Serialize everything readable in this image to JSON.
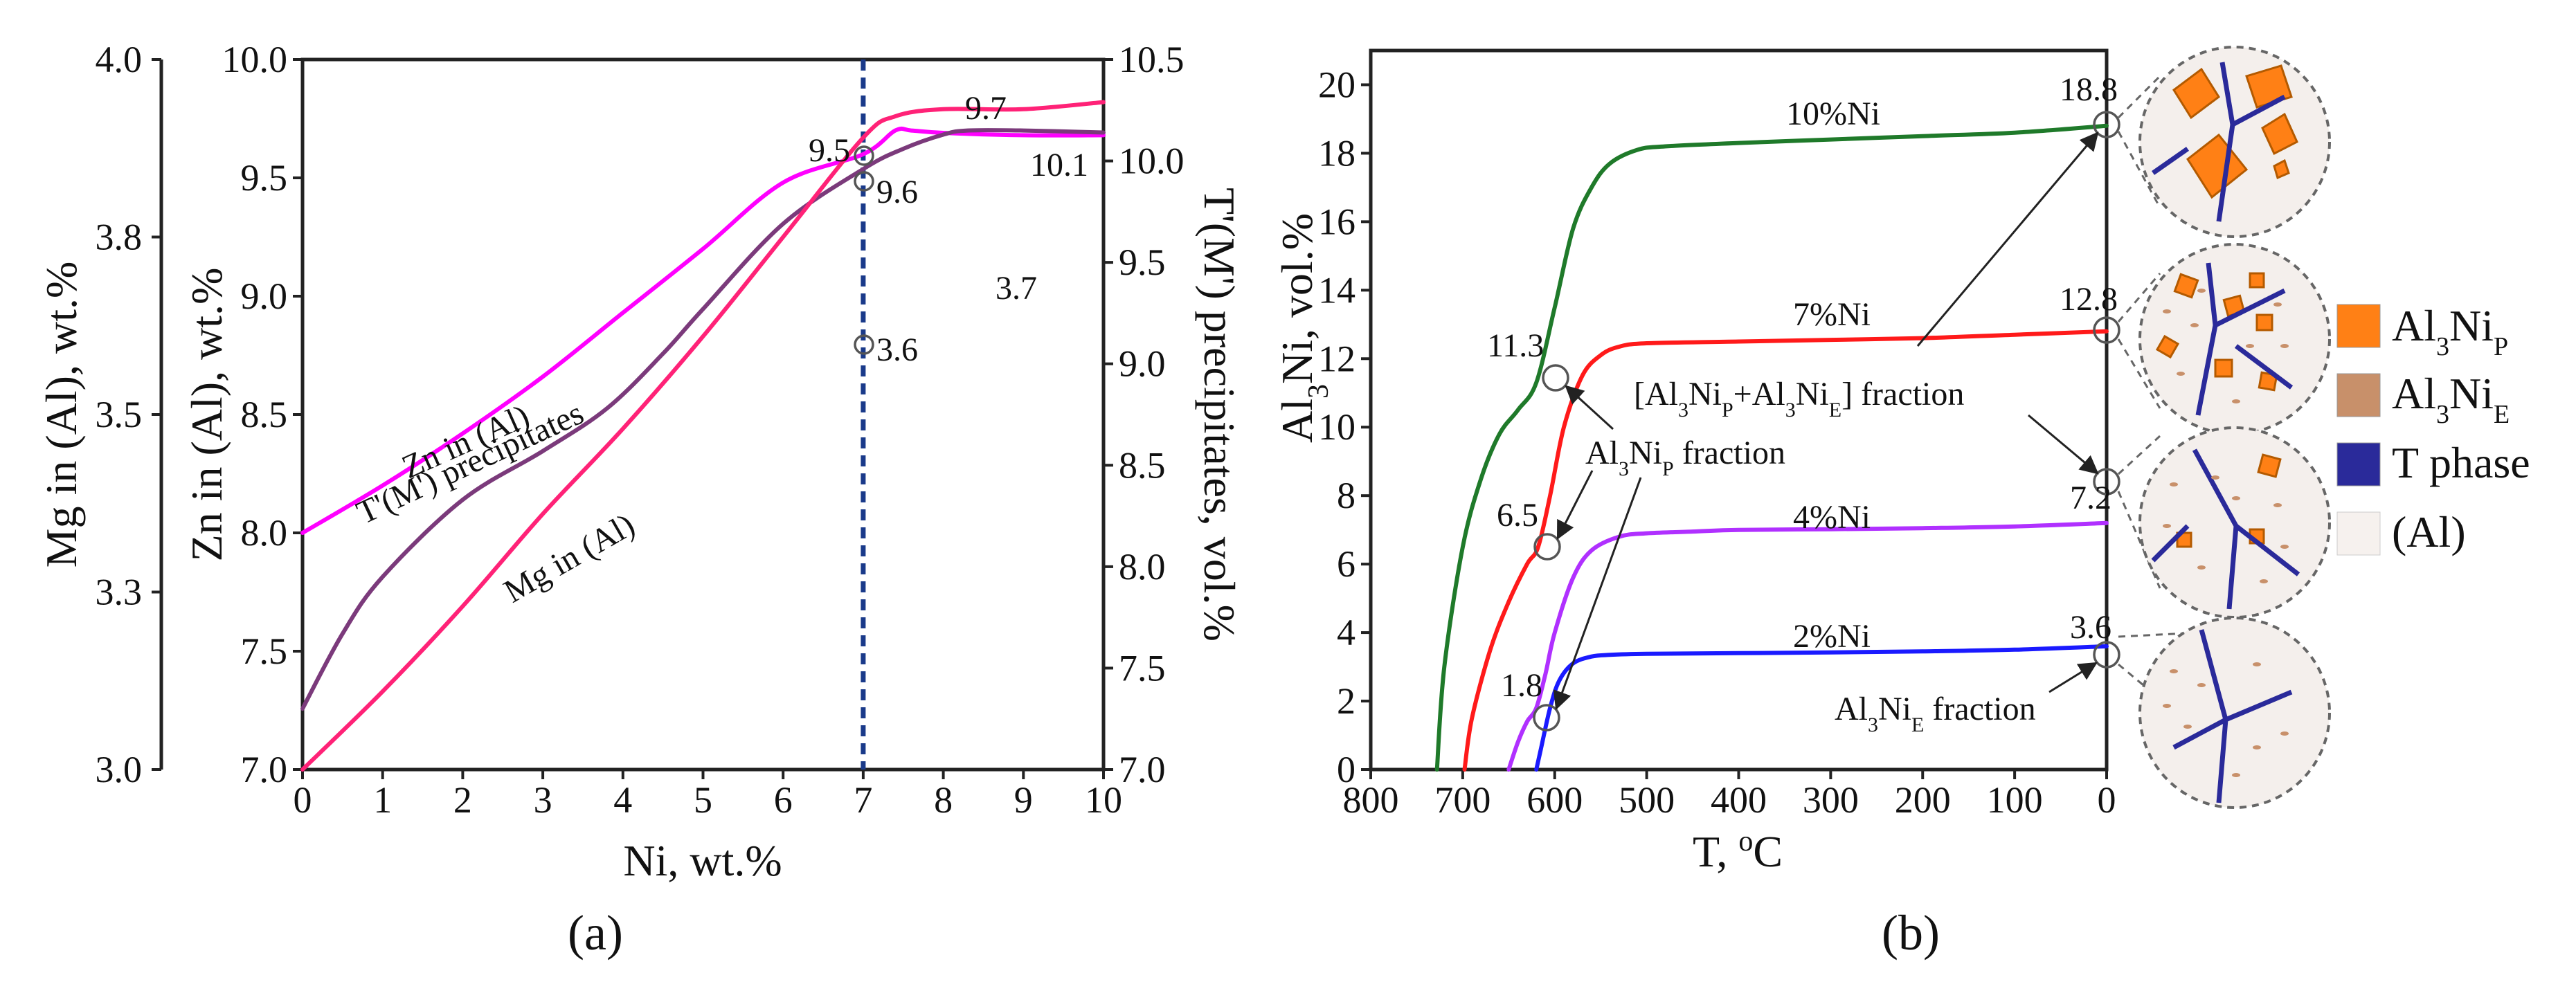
{
  "chart_data": [
    {
      "id": "a",
      "type": "line",
      "panel_label": "(a)",
      "xlabel": "Ni, wt.%",
      "xlim": [
        0,
        10
      ],
      "x_ticks": [
        "0",
        "1",
        "2",
        "3",
        "4",
        "5",
        "6",
        "7",
        "8",
        "9",
        "10"
      ],
      "y_axes": [
        {
          "id": "mg",
          "label": "Mg in (Al), wt.%",
          "ylim": [
            3.0,
            4.0
          ],
          "ticks": [
            "3.0",
            "3.3",
            "3.5",
            "3.8",
            "4.0"
          ],
          "tick_values": [
            3.0,
            3.25,
            3.5,
            3.75,
            4.0
          ]
        },
        {
          "id": "zn",
          "label": "Zn in (Al), wt.%",
          "ylim": [
            7.0,
            10.0
          ],
          "ticks": [
            "7.0",
            "7.5",
            "8.0",
            "8.5",
            "9.0",
            "9.5",
            "10.0"
          ]
        },
        {
          "id": "t",
          "label": "T'(M') precipitates, vol.%",
          "ylim": [
            7.0,
            10.5
          ],
          "ticks": [
            "7.0",
            "7.5",
            "8.0",
            "8.5",
            "9.0",
            "9.5",
            "10.0",
            "10.5"
          ]
        }
      ],
      "series": [
        {
          "name": "Zn in (Al)",
          "label": "Zn in (Al)",
          "color": "#ff00ff",
          "axis": "zn",
          "x": [
            0,
            1,
            2,
            3,
            4,
            5,
            6,
            7,
            7.4,
            7.6,
            8,
            9,
            10
          ],
          "y": [
            8.0,
            8.2,
            8.42,
            8.66,
            8.93,
            9.2,
            9.48,
            9.6,
            9.7,
            9.7,
            9.69,
            9.68,
            9.68
          ]
        },
        {
          "name": "T'(M') precipitates",
          "label": "T'(M') precipitates",
          "color": "#7b3a7b",
          "axis": "t",
          "x": [
            0,
            0.5,
            1,
            2,
            3,
            3.8,
            4.5,
            5,
            6,
            7,
            7.5,
            8,
            8.3,
            9,
            10
          ],
          "y": [
            7.3,
            7.67,
            7.95,
            8.33,
            8.57,
            8.78,
            9.05,
            9.27,
            9.69,
            9.96,
            10.06,
            10.13,
            10.15,
            10.15,
            10.14
          ]
        },
        {
          "name": "Mg in (Al)",
          "label": "Mg in (Al)",
          "color": "#ff2277",
          "axis": "mg",
          "x": [
            0,
            1,
            2,
            3,
            4,
            5,
            6,
            7,
            7.4,
            8,
            9,
            10
          ],
          "y": [
            3.0,
            3.11,
            3.23,
            3.36,
            3.48,
            3.61,
            3.75,
            3.89,
            3.92,
            3.93,
            3.93,
            3.94
          ]
        }
      ],
      "vline": {
        "x": 7,
        "color": "#1a3a8a"
      },
      "annotations": [
        "9.5",
        "9.6",
        "9.7",
        "10.1",
        "3.6",
        "3.7"
      ]
    },
    {
      "id": "b",
      "type": "line",
      "panel_label": "(b)",
      "xlabel": "T, °C",
      "ylabel": "Al3Ni, vol.%",
      "xlim": [
        800,
        0
      ],
      "ylim": [
        0,
        21
      ],
      "x_ticks": [
        "800",
        "700",
        "600",
        "500",
        "400",
        "300",
        "200",
        "100",
        "0"
      ],
      "y_ticks": [
        "0",
        "2",
        "4",
        "6",
        "8",
        "10",
        "12",
        "14",
        "16",
        "18",
        "20"
      ],
      "series": [
        {
          "name": "10%Ni",
          "label": "10%Ni",
          "color": "#1f7a2a",
          "x": [
            728,
            720,
            700,
            680,
            660,
            640,
            620,
            600,
            580,
            560,
            540,
            510,
            480,
            400,
            300,
            200,
            100,
            0
          ],
          "y": [
            0,
            3,
            6.5,
            8.5,
            9.8,
            10.5,
            11.3,
            13.5,
            15.8,
            17.0,
            17.7,
            18.1,
            18.2,
            18.3,
            18.4,
            18.5,
            18.6,
            18.8
          ]
        },
        {
          "name": "7%Ni",
          "label": "7%Ni",
          "color": "#ff1a1a",
          "x": [
            698,
            690,
            670,
            650,
            630,
            618,
            605,
            590,
            570,
            550,
            530,
            500,
            400,
            300,
            200,
            100,
            0
          ],
          "y": [
            0,
            1.5,
            3.5,
            4.9,
            6.0,
            6.5,
            8.0,
            10.0,
            11.5,
            12.1,
            12.35,
            12.45,
            12.5,
            12.55,
            12.6,
            12.7,
            12.8
          ]
        },
        {
          "name": "4%Ni",
          "label": "4%Ni",
          "color": "#b030ff",
          "x": [
            650,
            640,
            630,
            620,
            610,
            600,
            580,
            560,
            530,
            500,
            450,
            400,
            300,
            200,
            100,
            0
          ],
          "y": [
            0,
            0.8,
            1.4,
            1.8,
            2.8,
            4.0,
            5.6,
            6.4,
            6.8,
            6.9,
            6.95,
            7.0,
            7.02,
            7.05,
            7.1,
            7.2
          ]
        },
        {
          "name": "2%Ni",
          "label": "2%Ni",
          "color": "#1a1aff",
          "x": [
            620,
            615,
            605,
            595,
            580,
            560,
            540,
            500,
            400,
            300,
            200,
            100,
            0
          ],
          "y": [
            0,
            0.6,
            1.8,
            2.6,
            3.1,
            3.3,
            3.35,
            3.38,
            3.4,
            3.42,
            3.45,
            3.5,
            3.6
          ]
        }
      ],
      "annotations": {
        "values": [
          "18.8",
          "12.8",
          "7.2",
          "3.6",
          "11.3",
          "6.5",
          "1.8"
        ],
        "fraction_total": "[Al3NiP+Al3NiE] fraction",
        "fraction_primary": "Al3NiP fraction",
        "fraction_eutectic": "Al3NiE fraction"
      }
    }
  ],
  "legend": {
    "items": [
      {
        "label": "Al3NiP",
        "color": "#ff8015"
      },
      {
        "label": "Al3NiE",
        "color": "#c8906a"
      },
      {
        "label": "T phase",
        "color": "#2a2a9a"
      },
      {
        "label": "(Al)",
        "color": "#f6f1ee"
      }
    ]
  },
  "text": {
    "a_ann_95": "9.5",
    "a_ann_96": "9.6",
    "a_ann_97": "9.7",
    "a_ann_101": "10.1",
    "a_ann_36": "3.6",
    "a_ann_37": "3.7",
    "b_ann_188": "18.8",
    "b_ann_128": "12.8",
    "b_ann_72": "7.2",
    "b_ann_36": "3.6",
    "b_ann_113": "11.3",
    "b_ann_65": "6.5",
    "b_ann_18": "1.8",
    "al3ni_ylabel_main": "Al",
    "al3ni_ylabel_sub": "3",
    "al3ni_ylabel_rest": "Ni, vol.%",
    "frac_total_a": "[Al",
    "frac_total_b": "3",
    "frac_total_c": "Ni",
    "frac_total_d": "P",
    "frac_total_e": "+Al",
    "frac_total_f": "3",
    "frac_total_g": "Ni",
    "frac_total_h": "E",
    "frac_total_i": "] fraction",
    "frac_p_a": "Al",
    "frac_p_b": "3",
    "frac_p_c": "Ni",
    "frac_p_d": "P",
    "frac_p_e": " fraction",
    "frac_e_a": "Al",
    "frac_e_b": "3",
    "frac_e_c": "Ni",
    "frac_e_d": "E",
    "frac_e_e": " fraction",
    "leg1_a": "Al",
    "leg1_b": "3",
    "leg1_c": "Ni",
    "leg1_d": "P",
    "leg2_a": "Al",
    "leg2_b": "3",
    "leg2_c": "Ni",
    "leg2_d": "E",
    "leg3": "T phase",
    "leg4": "(Al)",
    "xlabel_b_a": "T, ",
    "xlabel_b_b": "o",
    "xlabel_b_c": "C"
  }
}
